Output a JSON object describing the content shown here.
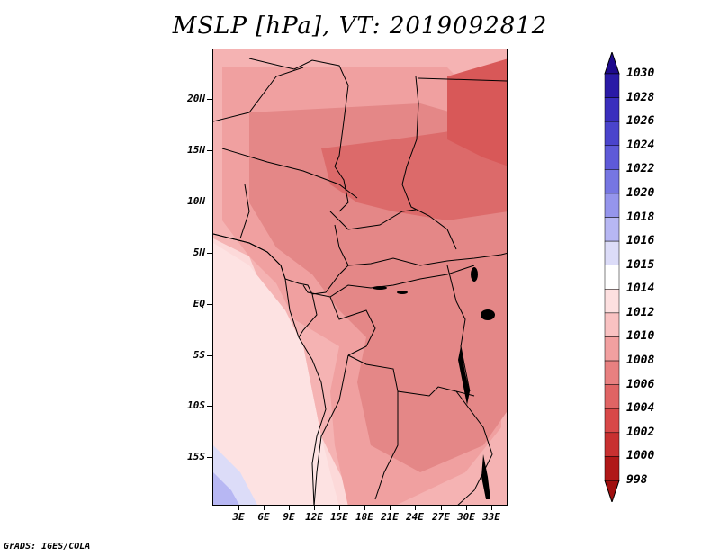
{
  "title": "MSLP [hPa], VT: 2019092812",
  "footer": "GrADS: IGES/COLA",
  "map": {
    "lat_labels": [
      "20N",
      "15N",
      "10N",
      "5N",
      "EQ",
      "5S",
      "10S",
      "15S"
    ],
    "lon_labels": [
      "3E",
      "6E",
      "9E",
      "12E",
      "15E",
      "18E",
      "21E",
      "24E",
      "27E",
      "30E",
      "33E"
    ]
  },
  "colorbar": {
    "levels": [
      "1030",
      "1028",
      "1026",
      "1024",
      "1022",
      "1020",
      "1018",
      "1016",
      "1015",
      "1014",
      "1012",
      "1010",
      "1008",
      "1006",
      "1004",
      "1002",
      "1000",
      "998"
    ],
    "colors": [
      "#1e0a8c",
      "#2a1aa6",
      "#3a2ebd",
      "#4a44cc",
      "#5e5ad8",
      "#7676e2",
      "#9595ec",
      "#b7b7f3",
      "#dcdcf8",
      "#ffffff",
      "#fde0e0",
      "#f9c2c2",
      "#f2a0a0",
      "#e88080",
      "#e06464",
      "#d84848",
      "#c83030",
      "#b01818",
      "#a00f0f"
    ]
  }
}
